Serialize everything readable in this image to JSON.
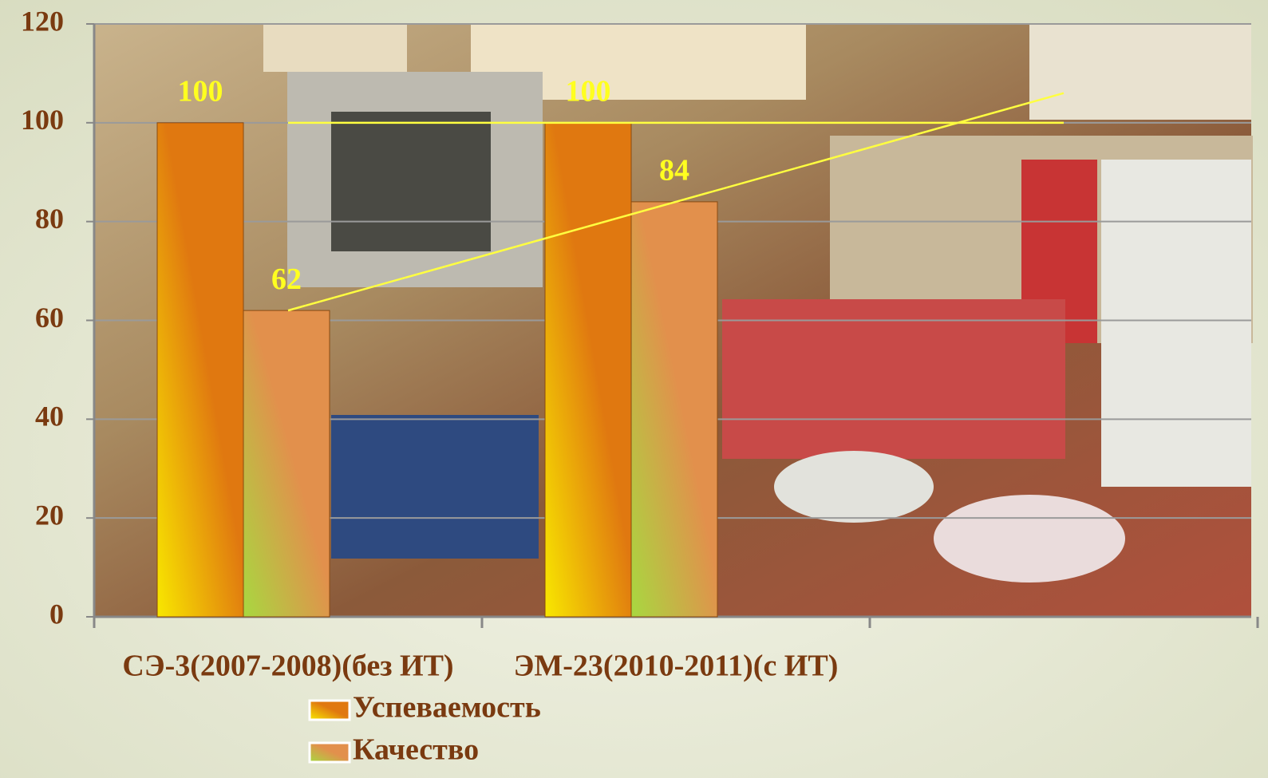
{
  "chart_data": {
    "type": "bar",
    "categories": [
      "СЭ-3(2007-2008)(без ИТ)",
      "ЭМ-23(2010-2011)(с ИТ)",
      null
    ],
    "series": [
      {
        "name": "Успеваемость",
        "color": "#e07810",
        "values": [
          100,
          100,
          null
        ]
      },
      {
        "name": "Качество",
        "color": "#e2904c",
        "values": [
          62,
          84,
          null
        ]
      }
    ],
    "ylim": [
      0,
      120
    ],
    "yticks": [
      0,
      20,
      40,
      60,
      80,
      100,
      120
    ],
    "grid": true,
    "trendline": true,
    "trendline_color": "#ffff40",
    "value_label_color": "#ffff20",
    "legend": "bottom"
  }
}
